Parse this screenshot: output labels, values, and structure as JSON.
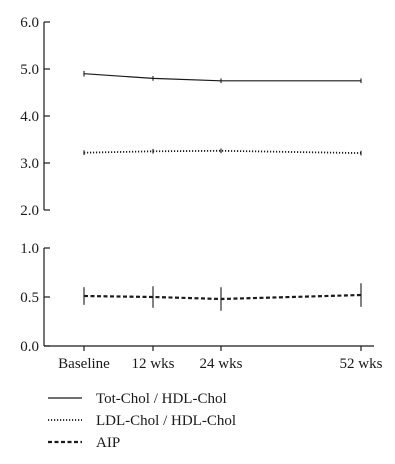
{
  "chart_data": {
    "type": "line",
    "categories": [
      "Baseline",
      "12 wks",
      "24 wks",
      "52 wks"
    ],
    "x_weeks": [
      0,
      12,
      24,
      52
    ],
    "xlabel": "",
    "ylabel": "",
    "panels": [
      {
        "name": "upper",
        "ylim": [
          2.0,
          6.0
        ],
        "ytick_labels": [
          "2.0",
          "3.0",
          "4.0",
          "5.0",
          "6.0"
        ],
        "ytick_values": [
          2.0,
          3.0,
          4.0,
          5.0,
          6.0
        ]
      },
      {
        "name": "lower",
        "ylim": [
          0.0,
          1.0
        ],
        "ytick_labels": [
          "0.0",
          "0.5",
          "1.0"
        ],
        "ytick_values": [
          0.0,
          0.5,
          1.0
        ]
      }
    ],
    "series": [
      {
        "name": "Tot-Chol / HDL-Chol",
        "panel": "upper",
        "style": "solid",
        "values": [
          4.9,
          4.8,
          4.75,
          4.75
        ],
        "error": [
          0.06,
          0.05,
          0.05,
          0.05
        ]
      },
      {
        "name": "LDL-Chol / HDL-Chol",
        "panel": "upper",
        "style": "dotted",
        "values": [
          3.22,
          3.25,
          3.26,
          3.21
        ],
        "error": [
          0.05,
          0.05,
          0.05,
          0.05
        ]
      },
      {
        "name": "AIP",
        "panel": "lower",
        "style": "dashed",
        "values": [
          0.51,
          0.5,
          0.48,
          0.52
        ],
        "error": [
          0.09,
          0.11,
          0.12,
          0.12
        ]
      }
    ],
    "grid": false,
    "legend_position": "bottom-left"
  },
  "colors": {
    "axis": "#1a1a1a",
    "series": "#1a1a1a"
  }
}
